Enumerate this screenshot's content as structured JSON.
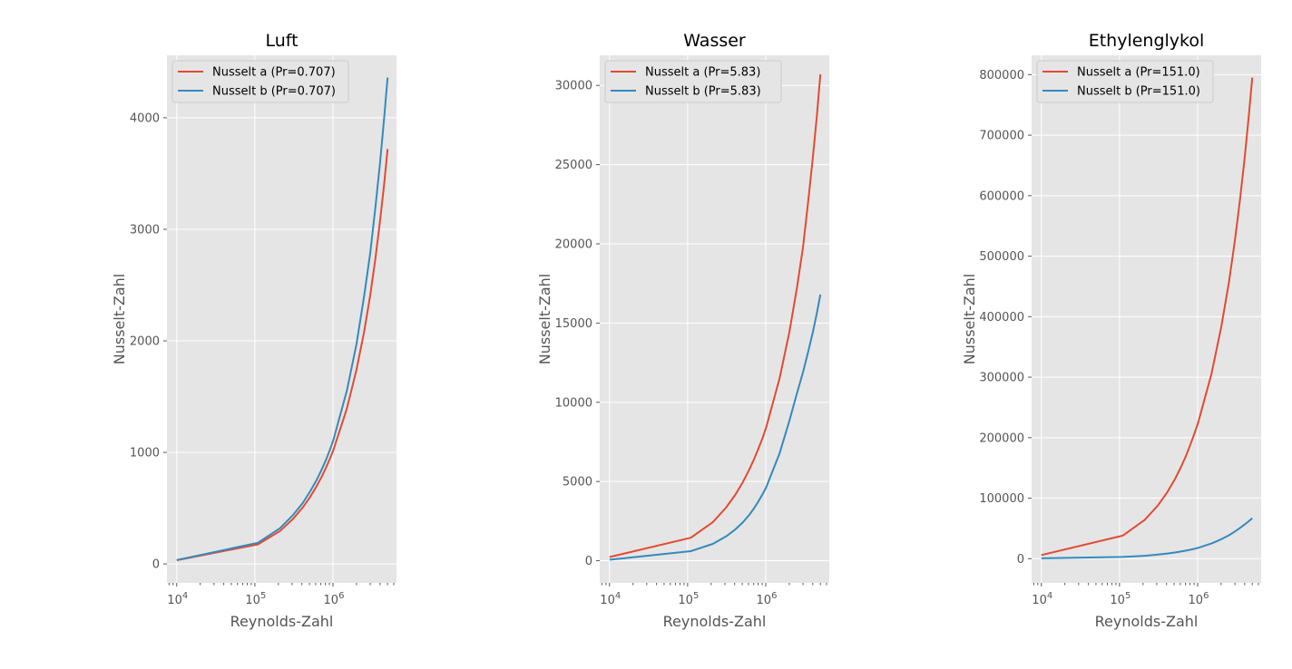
{
  "colors": {
    "series_a": "#E24A33",
    "series_b": "#348ABD"
  },
  "chart_data": [
    {
      "type": "line",
      "title": "Luft",
      "xlabel": "Reynolds-Zahl",
      "ylabel": "Nusselt-Zahl",
      "xscale": "log",
      "xlim": [
        7500,
        6500000
      ],
      "ylim": [
        -170,
        4560
      ],
      "grid": true,
      "legend_position": "top-left",
      "x_ticks": [
        10000,
        100000,
        1000000
      ],
      "x_tick_labels": [
        {
          "base": "10",
          "exp": "4"
        },
        {
          "base": "10",
          "exp": "5"
        },
        {
          "base": "10",
          "exp": "6"
        }
      ],
      "y_ticks": [
        0,
        1000,
        2000,
        3000,
        4000
      ],
      "y_tick_labels": [
        "0",
        "1000",
        "2000",
        "3000",
        "4000"
      ],
      "x": [
        10000,
        110000,
        210000,
        310000,
        410000,
        510000,
        610000,
        710000,
        810000,
        910000,
        1010000,
        1500000,
        2000000,
        2500000,
        3000000,
        3500000,
        4000000,
        4500000,
        5000000
      ],
      "series": [
        {
          "name": "Nusselt a (Pr=0.707)",
          "color_key": "series_a",
          "values": [
            33,
            175,
            295,
            405,
            505,
            600,
            690,
            775,
            860,
            940,
            1020,
            1390,
            1740,
            2080,
            2410,
            2740,
            3070,
            3390,
            3720
          ]
        },
        {
          "name": "Nusselt b (Pr=0.707)",
          "color_key": "series_b",
          "values": [
            35,
            190,
            320,
            440,
            545,
            650,
            745,
            840,
            930,
            1020,
            1110,
            1550,
            1970,
            2400,
            2790,
            3200,
            3590,
            3980,
            4360
          ]
        }
      ]
    },
    {
      "type": "line",
      "title": "Wasser",
      "xlabel": "Reynolds-Zahl",
      "ylabel": "Nusselt-Zahl",
      "xscale": "log",
      "xlim": [
        7500,
        6500000
      ],
      "ylim": [
        -1400,
        31900
      ],
      "grid": true,
      "legend_position": "top-left",
      "x_ticks": [
        10000,
        100000,
        1000000
      ],
      "x_tick_labels": [
        {
          "base": "10",
          "exp": "4"
        },
        {
          "base": "10",
          "exp": "5"
        },
        {
          "base": "10",
          "exp": "6"
        }
      ],
      "y_ticks": [
        0,
        5000,
        10000,
        15000,
        20000,
        25000,
        30000
      ],
      "y_tick_labels": [
        "0",
        "5000",
        "10000",
        "15000",
        "20000",
        "25000",
        "30000"
      ],
      "x": [
        10000,
        110000,
        210000,
        310000,
        410000,
        510000,
        610000,
        710000,
        810000,
        910000,
        1010000,
        1500000,
        2000000,
        2500000,
        3000000,
        3500000,
        4000000,
        4500000,
        5000000
      ],
      "series": [
        {
          "name": "Nusselt a (Pr=5.83)",
          "color_key": "series_a",
          "values": [
            230,
            1450,
            2430,
            3350,
            4180,
            4970,
            5710,
            6420,
            7100,
            7750,
            8400,
            11500,
            14400,
            17200,
            19800,
            22700,
            25400,
            28000,
            30700
          ]
        },
        {
          "name": "Nusselt b (Pr=5.83)",
          "color_key": "series_b",
          "values": [
            60,
            600,
            1060,
            1530,
            1980,
            2430,
            2870,
            3320,
            3760,
            4200,
            4620,
            6770,
            8800,
            10550,
            11900,
            13200,
            14400,
            15600,
            16800
          ]
        }
      ]
    },
    {
      "type": "line",
      "title": "Ethylenglykol",
      "xlabel": "Reynolds-Zahl",
      "ylabel": "Nusselt-Zahl",
      "xscale": "log",
      "xlim": [
        7500,
        6500000
      ],
      "ylim": [
        -40000,
        832000
      ],
      "grid": true,
      "legend_position": "top-left",
      "x_ticks": [
        10000,
        100000,
        1000000
      ],
      "x_tick_labels": [
        {
          "base": "10",
          "exp": "4"
        },
        {
          "base": "10",
          "exp": "5"
        },
        {
          "base": "10",
          "exp": "6"
        }
      ],
      "y_ticks": [
        0,
        100000,
        200000,
        300000,
        400000,
        500000,
        600000,
        700000,
        800000
      ],
      "y_tick_labels": [
        "0",
        "100000",
        "200000",
        "300000",
        "400000",
        "500000",
        "600000",
        "700000",
        "800000"
      ],
      "x": [
        10000,
        110000,
        210000,
        310000,
        410000,
        510000,
        610000,
        710000,
        810000,
        910000,
        1010000,
        1500000,
        2000000,
        2500000,
        3000000,
        3500000,
        4000000,
        4500000,
        5000000
      ],
      "series": [
        {
          "name": "Nusselt a (Pr=151.0)",
          "color_key": "series_a",
          "values": [
            6000,
            38000,
            64000,
            88000,
            110000,
            131000,
            151000,
            170000,
            189000,
            207000,
            224000,
            305000,
            382000,
            455000,
            526000,
            595000,
            662000,
            729000,
            795000
          ]
        },
        {
          "name": "Nusselt b (Pr=151.0)",
          "color_key": "series_b",
          "values": [
            600,
            2800,
            4800,
            6700,
            8500,
            10200,
            11800,
            13400,
            14900,
            16400,
            17900,
            25000,
            32000,
            38500,
            45000,
            51000,
            56500,
            61800,
            67000
          ]
        }
      ]
    }
  ]
}
